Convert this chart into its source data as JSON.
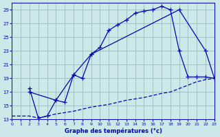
{
  "title": "",
  "xlabel": "Graphe des températures (°c)",
  "bg_color": "#cce8e8",
  "grid_color": "#99bbbb",
  "line_color": "#0000bb",
  "xlim": [
    0,
    23
  ],
  "ylim": [
    13,
    30
  ],
  "yticks": [
    13,
    15,
    17,
    19,
    21,
    23,
    25,
    27,
    29
  ],
  "xticks": [
    0,
    1,
    2,
    3,
    4,
    5,
    6,
    7,
    8,
    9,
    10,
    11,
    12,
    13,
    14,
    15,
    16,
    17,
    18,
    19,
    20,
    21,
    22,
    23
  ],
  "line1_x": [
    2,
    3,
    4,
    5,
    6,
    7,
    8,
    9,
    10,
    11,
    12,
    13,
    14,
    15,
    16,
    17,
    18,
    19,
    20,
    21,
    22,
    23
  ],
  "line1_y": [
    17.5,
    13.2,
    13.5,
    15.8,
    15.5,
    19.5,
    19.0,
    22.5,
    23.5,
    26.0,
    26.8,
    27.5,
    28.5,
    28.8,
    29.0,
    29.5,
    29.0,
    23.0,
    19.2,
    19.2,
    19.2,
    19.0
  ],
  "line2_x": [
    2,
    5,
    7,
    9,
    19,
    22,
    23
  ],
  "line2_y": [
    17.0,
    15.8,
    19.5,
    22.5,
    29.0,
    23.0,
    19.0
  ],
  "line3_x": [
    0,
    2,
    3,
    4,
    5,
    6,
    7,
    8,
    9,
    10,
    11,
    12,
    13,
    14,
    15,
    16,
    17,
    18,
    19,
    20,
    21,
    22,
    23
  ],
  "line3_y": [
    13.5,
    13.5,
    13.2,
    13.5,
    13.8,
    14.0,
    14.2,
    14.5,
    14.8,
    15.0,
    15.2,
    15.5,
    15.8,
    16.0,
    16.2,
    16.5,
    16.8,
    17.0,
    17.5,
    18.0,
    18.5,
    18.8,
    19.0
  ]
}
